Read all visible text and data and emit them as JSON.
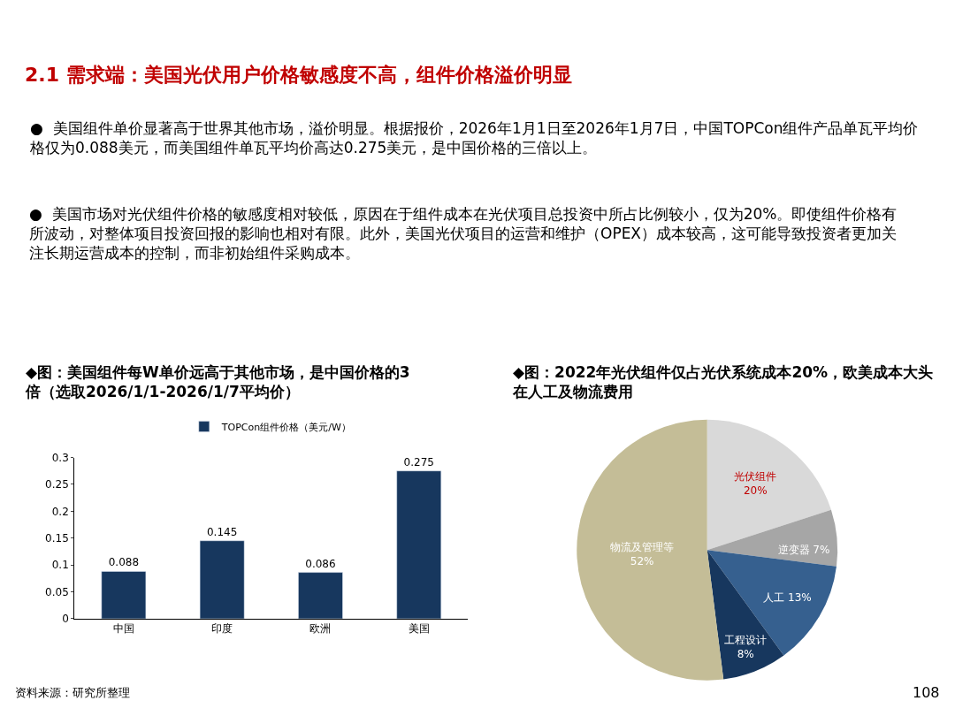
{
  "chart_data": [
    {
      "type": "other",
      "title": "2.1 需求端：美国光伏用户价格敏感度不高，组件价格溢价明显",
      "annotations": [
        "●  美国组件单价显著高于世界其他市场，溢价明显。根据报价，2026年1月1日至2026年1月7日，中国TOPCon组件产品单瓦平均价格仅为0.088美元，而美国组件单瓦平均价高达0.275美元，是中国价格的三倍以上。",
        "●  美国市场对光伏组件价格的敏感度相对较低，原因在于组件成本在光伏项目总投资中所占比例较小，仅为20%。即使组件价格有所波动，对整体项目投资回报的影响也相对有限。此外，美国光伏项目的运营和维护（OPEX）成本较高，这可能导致投资者更加关注长期运营成本的控制，而非初始组件采购成本。",
        "资料来源：研究所整理",
        "108"
      ]
    },
    {
      "type": "bar",
      "title": "◆图：美国组件每W单价远高于其他市场，是中国价格的3倍（选取2026/1/1-2026/1/7平均价）",
      "categories": [
        "中国",
        "印度",
        "欧洲",
        "美国"
      ],
      "series": [
        {
          "name": "TOPCon组件价格（美元/W）",
          "color": "#17375e",
          "values": [
            0.088,
            0.145,
            0.086,
            0.275
          ]
        }
      ],
      "ylim": [
        0,
        0.3
      ],
      "yticks": [
        0,
        0.05,
        0.1,
        0.15,
        0.2,
        0.25,
        0.3
      ],
      "data_labels": true,
      "legend": "top"
    },
    {
      "type": "pie",
      "title": "◆图：2022年光伏组件仅占光伏系统成本20%，欧美成本大头在人工及物流费用",
      "categories": [
        "光伏组件",
        "逆变器",
        "人工",
        "工程设计",
        "物流及管理等"
      ],
      "values": [
        20,
        7,
        13,
        8,
        52
      ],
      "colors": [
        "#d9d9d9",
        "#a6a6a6",
        "#36608f",
        "#17375e",
        "#c4bd97"
      ],
      "value_labels": [
        "20%",
        "7%",
        "13%",
        "8%",
        "52%"
      ]
    }
  ]
}
